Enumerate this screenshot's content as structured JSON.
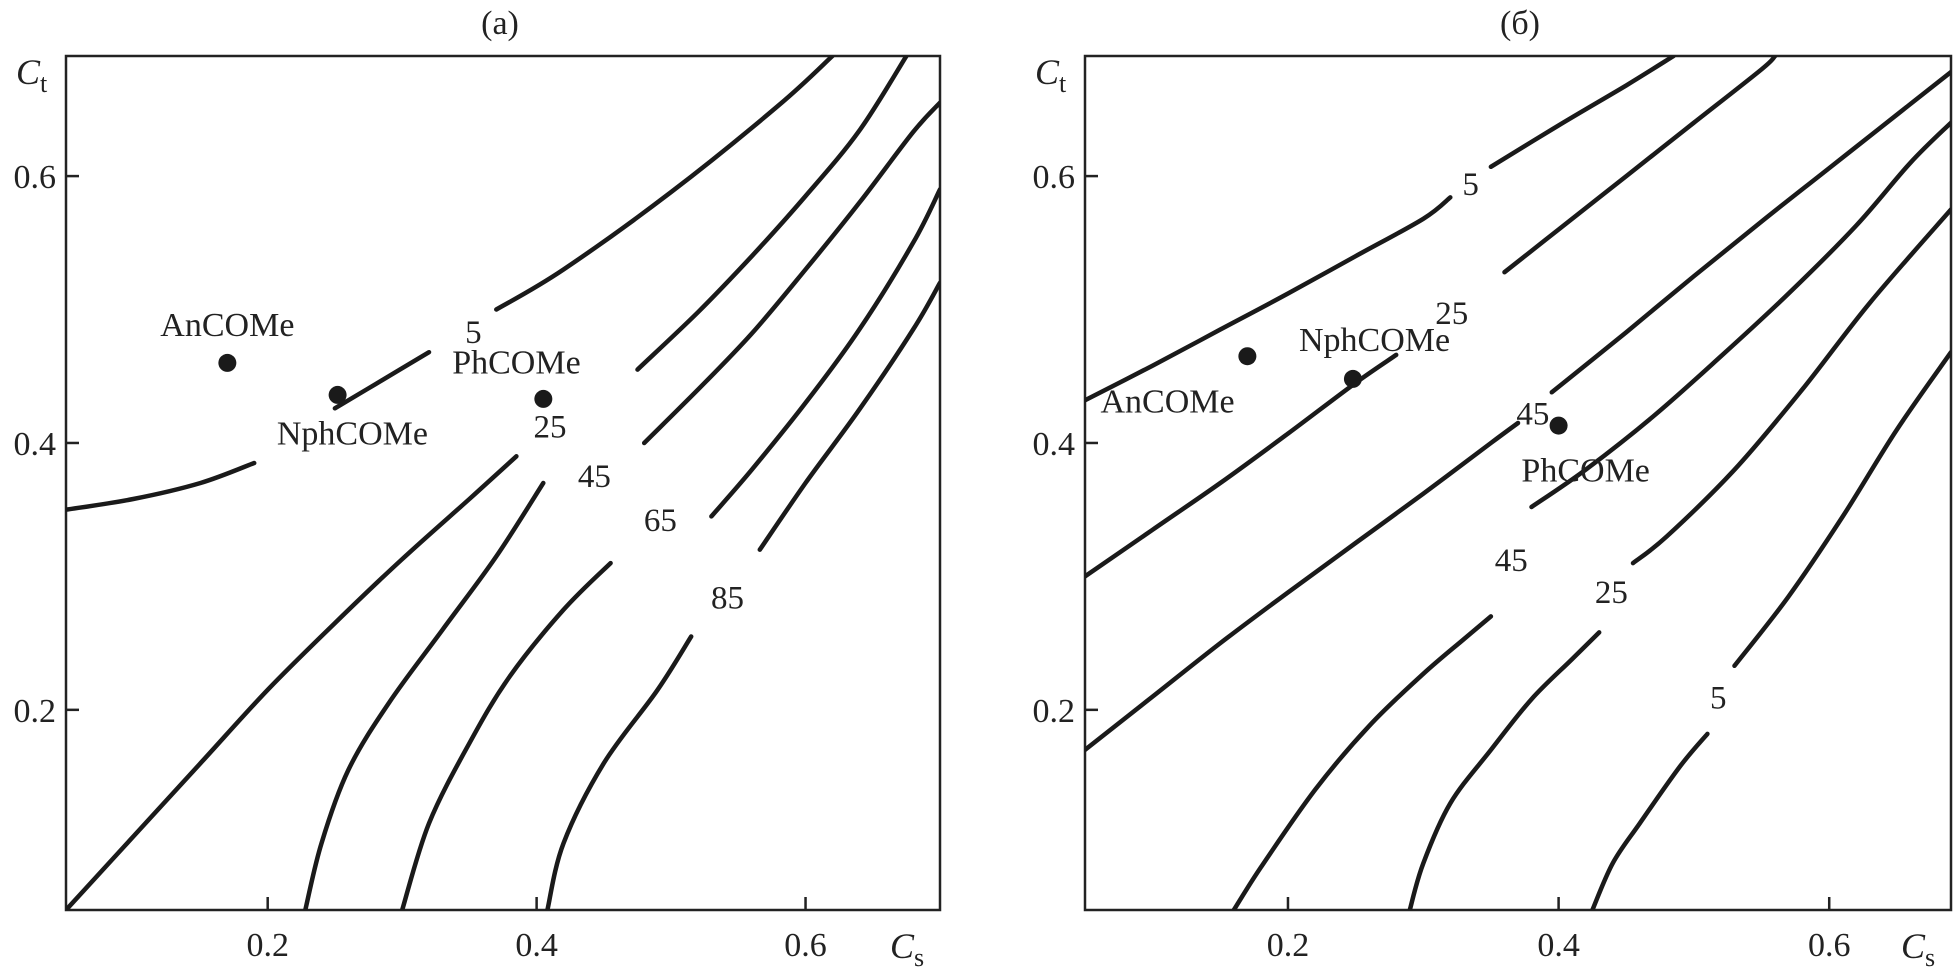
{
  "chart_data": [
    {
      "type": "contour",
      "title": "(а)",
      "xlabel_main": "C",
      "xlabel_sub": "s",
      "ylabel_main": "C",
      "ylabel_sub": "t",
      "xlim": [
        0.05,
        0.7
      ],
      "ylim": [
        0.05,
        0.69
      ],
      "xticks": [
        0.2,
        0.4,
        0.6
      ],
      "xtick_labels": [
        "0.2",
        "0.4",
        "0.6"
      ],
      "yticks": [
        0.2,
        0.4,
        0.6
      ],
      "ytick_labels": [
        "0.2",
        "0.4",
        "0.6"
      ],
      "grid": false,
      "contours": [
        {
          "level": "5",
          "segments": [
            [
              [
                0.05,
                0.35
              ],
              [
                0.1,
                0.358
              ],
              [
                0.15,
                0.37
              ],
              [
                0.19,
                0.385
              ]
            ],
            [
              [
                0.25,
                0.426
              ],
              [
                0.28,
                0.444
              ],
              [
                0.32,
                0.468
              ]
            ],
            [
              [
                0.37,
                0.5
              ],
              [
                0.42,
                0.53
              ],
              [
                0.5,
                0.588
              ],
              [
                0.58,
                0.653
              ],
              [
                0.62,
                0.69
              ]
            ]
          ],
          "label_at": [
            0.353,
            0.484
          ]
        },
        {
          "level": "25",
          "segments": [
            [
              [
                0.05,
                0.05
              ],
              [
                0.1,
                0.105
              ],
              [
                0.15,
                0.16
              ],
              [
                0.2,
                0.215
              ],
              [
                0.25,
                0.265
              ],
              [
                0.3,
                0.313
              ],
              [
                0.35,
                0.358
              ],
              [
                0.385,
                0.39
              ]
            ],
            [
              [
                0.475,
                0.455
              ],
              [
                0.52,
                0.498
              ],
              [
                0.56,
                0.54
              ],
              [
                0.6,
                0.585
              ],
              [
                0.64,
                0.634
              ],
              [
                0.675,
                0.69
              ]
            ]
          ],
          "label_at": [
            0.41,
            0.413
          ]
        },
        {
          "level": "45",
          "segments": [
            [
              [
                0.228,
                0.05
              ],
              [
                0.24,
                0.1
              ],
              [
                0.26,
                0.155
              ],
              [
                0.29,
                0.205
              ],
              [
                0.33,
                0.26
              ],
              [
                0.37,
                0.315
              ],
              [
                0.405,
                0.37
              ]
            ],
            [
              [
                0.48,
                0.4
              ],
              [
                0.52,
                0.44
              ],
              [
                0.56,
                0.482
              ],
              [
                0.6,
                0.53
              ],
              [
                0.64,
                0.58
              ],
              [
                0.68,
                0.633
              ],
              [
                0.7,
                0.655
              ]
            ]
          ],
          "label_at": [
            0.443,
            0.376
          ]
        },
        {
          "level": "65",
          "segments": [
            [
              [
                0.3,
                0.05
              ],
              [
                0.32,
                0.115
              ],
              [
                0.35,
                0.175
              ],
              [
                0.38,
                0.225
              ],
              [
                0.42,
                0.275
              ],
              [
                0.455,
                0.31
              ]
            ],
            [
              [
                0.53,
                0.345
              ],
              [
                0.56,
                0.38
              ],
              [
                0.6,
                0.43
              ],
              [
                0.64,
                0.485
              ],
              [
                0.68,
                0.55
              ],
              [
                0.7,
                0.59
              ]
            ]
          ],
          "label_at": [
            0.492,
            0.343
          ]
        },
        {
          "level": "85",
          "segments": [
            [
              [
                0.408,
                0.05
              ],
              [
                0.42,
                0.1
              ],
              [
                0.45,
                0.16
              ],
              [
                0.49,
                0.215
              ],
              [
                0.515,
                0.255
              ]
            ],
            [
              [
                0.566,
                0.32
              ],
              [
                0.6,
                0.37
              ],
              [
                0.64,
                0.425
              ],
              [
                0.68,
                0.485
              ],
              [
                0.7,
                0.52
              ]
            ]
          ],
          "label_at": [
            0.542,
            0.285
          ]
        }
      ],
      "points": [
        {
          "name": "AnCOMe",
          "x": 0.17,
          "y": 0.46,
          "label_at": [
            0.17,
            0.489
          ]
        },
        {
          "name": "NphCOMe",
          "x": 0.252,
          "y": 0.436,
          "label_at": [
            0.263,
            0.408
          ]
        },
        {
          "name": "PhCOMe",
          "x": 0.405,
          "y": 0.433,
          "label_at": [
            0.385,
            0.461
          ]
        }
      ]
    },
    {
      "type": "contour",
      "title": "(б)",
      "xlabel_main": "C",
      "xlabel_sub": "s",
      "ylabel_main": "C",
      "ylabel_sub": "t",
      "xlim": [
        0.05,
        0.69
      ],
      "ylim": [
        0.05,
        0.69
      ],
      "xticks": [
        0.2,
        0.4,
        0.6
      ],
      "xtick_labels": [
        "0.2",
        "0.4",
        "0.6"
      ],
      "yticks": [
        0.2,
        0.4,
        0.6
      ],
      "ytick_labels": [
        "0.2",
        "0.4",
        "0.6"
      ],
      "grid": false,
      "contours": [
        {
          "level": "5",
          "segments": [
            [
              [
                0.05,
                0.432
              ],
              [
                0.1,
                0.458
              ],
              [
                0.15,
                0.485
              ],
              [
                0.2,
                0.512
              ],
              [
                0.25,
                0.54
              ],
              [
                0.3,
                0.568
              ],
              [
                0.32,
                0.584
              ]
            ],
            [
              [
                0.35,
                0.607
              ],
              [
                0.4,
                0.638
              ],
              [
                0.45,
                0.668
              ],
              [
                0.485,
                0.69
              ]
            ]
          ],
          "label_at": [
            0.335,
            0.595
          ]
        },
        {
          "level": "25",
          "segments": [
            [
              [
                0.05,
                0.3
              ],
              [
                0.1,
                0.335
              ],
              [
                0.15,
                0.37
              ],
              [
                0.2,
                0.407
              ],
              [
                0.25,
                0.445
              ],
              [
                0.28,
                0.466
              ]
            ],
            [
              [
                0.36,
                0.528
              ],
              [
                0.4,
                0.56
              ],
              [
                0.45,
                0.6
              ],
              [
                0.5,
                0.64
              ],
              [
                0.55,
                0.68
              ],
              [
                0.56,
                0.69
              ]
            ]
          ],
          "label_at": [
            0.321,
            0.498
          ]
        },
        {
          "level": "45",
          "segments": [
            [
              [
                0.05,
                0.17
              ],
              [
                0.1,
                0.21
              ],
              [
                0.15,
                0.25
              ],
              [
                0.2,
                0.288
              ],
              [
                0.25,
                0.325
              ],
              [
                0.3,
                0.362
              ],
              [
                0.35,
                0.4
              ],
              [
                0.37,
                0.415
              ]
            ],
            [
              [
                0.395,
                0.438
              ],
              [
                0.45,
                0.483
              ],
              [
                0.5,
                0.525
              ],
              [
                0.55,
                0.566
              ],
              [
                0.6,
                0.606
              ],
              [
                0.65,
                0.646
              ],
              [
                0.69,
                0.678
              ]
            ]
          ],
          "label_at": [
            0.381,
            0.423
          ]
        },
        {
          "level": "45",
          "segments": [
            [
              [
                0.16,
                0.05
              ],
              [
                0.18,
                0.082
              ],
              [
                0.22,
                0.14
              ],
              [
                0.26,
                0.188
              ],
              [
                0.3,
                0.227
              ],
              [
                0.33,
                0.253
              ],
              [
                0.35,
                0.27
              ]
            ],
            [
              [
                0.38,
                0.352
              ],
              [
                0.42,
                0.38
              ],
              [
                0.47,
                0.42
              ],
              [
                0.52,
                0.465
              ],
              [
                0.57,
                0.512
              ],
              [
                0.62,
                0.563
              ],
              [
                0.66,
                0.61
              ],
              [
                0.69,
                0.64
              ]
            ]
          ],
          "label_at": [
            0.365,
            0.313
          ]
        },
        {
          "level": "25",
          "segments": [
            [
              [
                0.29,
                0.05
              ],
              [
                0.3,
                0.085
              ],
              [
                0.32,
                0.13
              ],
              [
                0.35,
                0.17
              ],
              [
                0.38,
                0.208
              ],
              [
                0.41,
                0.238
              ],
              [
                0.43,
                0.258
              ]
            ],
            [
              [
                0.455,
                0.31
              ],
              [
                0.48,
                0.33
              ],
              [
                0.53,
                0.38
              ],
              [
                0.58,
                0.44
              ],
              [
                0.63,
                0.505
              ],
              [
                0.69,
                0.575
              ]
            ]
          ],
          "label_at": [
            0.439,
            0.289
          ]
        },
        {
          "level": "5",
          "segments": [
            [
              [
                0.425,
                0.05
              ],
              [
                0.44,
                0.085
              ],
              [
                0.46,
                0.115
              ],
              [
                0.49,
                0.158
              ],
              [
                0.51,
                0.182
              ]
            ],
            [
              [
                0.53,
                0.233
              ],
              [
                0.57,
                0.285
              ],
              [
                0.61,
                0.345
              ],
              [
                0.65,
                0.41
              ],
              [
                0.69,
                0.468
              ]
            ]
          ],
          "label_at": [
            0.518,
            0.21
          ]
        }
      ],
      "points": [
        {
          "name": "AnCOMe",
          "x": 0.17,
          "y": 0.465,
          "label_at": [
            0.111,
            0.432
          ]
        },
        {
          "name": "NphCOMe",
          "x": 0.248,
          "y": 0.448,
          "label_at": [
            0.264,
            0.478
          ]
        },
        {
          "name": "PhCOMe",
          "x": 0.4,
          "y": 0.413,
          "label_at": [
            0.42,
            0.38
          ]
        }
      ]
    }
  ]
}
